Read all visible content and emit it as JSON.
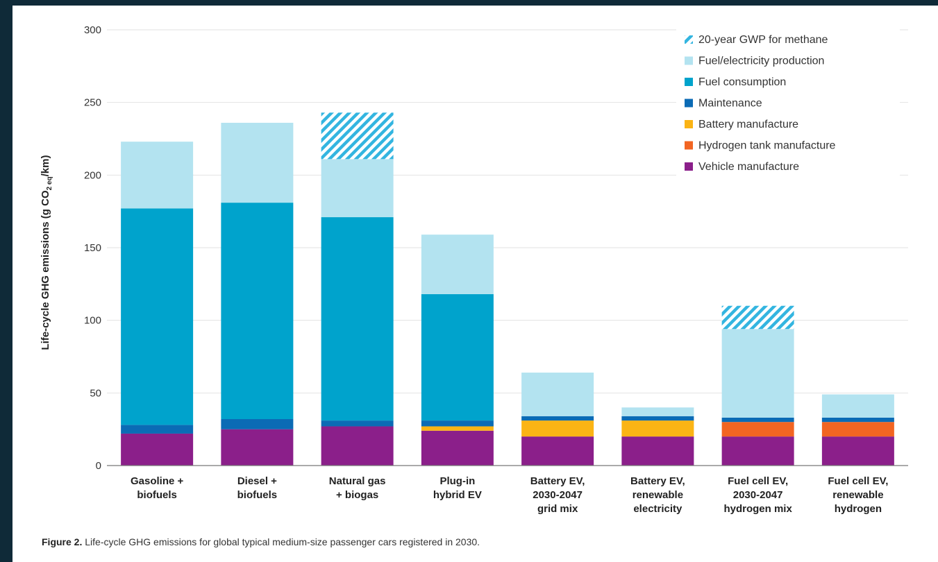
{
  "frame": {
    "background": "#0f2a38"
  },
  "caption": {
    "bold": "Figure 2.",
    "text": " Life-cycle GHG emissions for global typical medium-size passenger cars registered in 2030."
  },
  "chart_data": {
    "type": "bar",
    "stacked": true,
    "title": "",
    "xlabel": "",
    "ylabel": "Life-cycle GHG emissions (g CO2 eq/km)",
    "ylim": [
      0,
      300
    ],
    "yticks": [
      0,
      50,
      100,
      150,
      200,
      250,
      300
    ],
    "grid": true,
    "legend_position": "top-right",
    "categories": [
      [
        "Gasoline +",
        "biofuels"
      ],
      [
        "Diesel +",
        "biofuels"
      ],
      [
        "Natural gas",
        "+ biogas"
      ],
      [
        "Plug-in",
        "hybrid EV"
      ],
      [
        "Battery EV,",
        "2030-2047",
        "grid mix"
      ],
      [
        "Battery EV,",
        "renewable",
        "electricity"
      ],
      [
        "Fuel cell EV,",
        "2030-2047",
        "hydrogen mix"
      ],
      [
        "Fuel cell EV,",
        "renewable",
        "hydrogen"
      ]
    ],
    "series": [
      {
        "name": "Vehicle manufacture",
        "color": "#8b1f8a",
        "values": [
          22,
          25,
          27,
          24,
          20,
          20,
          20,
          20
        ]
      },
      {
        "name": "Hydrogen tank manufacture",
        "color": "#f26522",
        "values": [
          0,
          0,
          0,
          0,
          0,
          0,
          10,
          10
        ]
      },
      {
        "name": "Battery manufacture",
        "color": "#fbb415",
        "values": [
          0,
          0,
          0,
          3,
          11,
          11,
          0,
          0
        ]
      },
      {
        "name": "Maintenance",
        "color": "#0b6bb5",
        "values": [
          6,
          7,
          4,
          4,
          3,
          3,
          3,
          3
        ]
      },
      {
        "name": "Fuel consumption",
        "color": "#00a3cc",
        "values": [
          149,
          149,
          140,
          87,
          0,
          0,
          0,
          0
        ]
      },
      {
        "name": "Fuel/electricity production",
        "color": "#b3e3f0",
        "values": [
          46,
          55,
          40,
          41,
          30,
          6,
          61,
          16
        ]
      },
      {
        "name": "20-year GWP for methane",
        "color": "#33b5e0",
        "pattern": "hatch",
        "values": [
          0,
          0,
          32,
          0,
          0,
          0,
          16,
          0
        ]
      }
    ],
    "legend_order": [
      "20-year GWP for methane",
      "Fuel/electricity production",
      "Fuel consumption",
      "Maintenance",
      "Battery manufacture",
      "Hydrogen tank manufacture",
      "Vehicle manufacture"
    ]
  }
}
